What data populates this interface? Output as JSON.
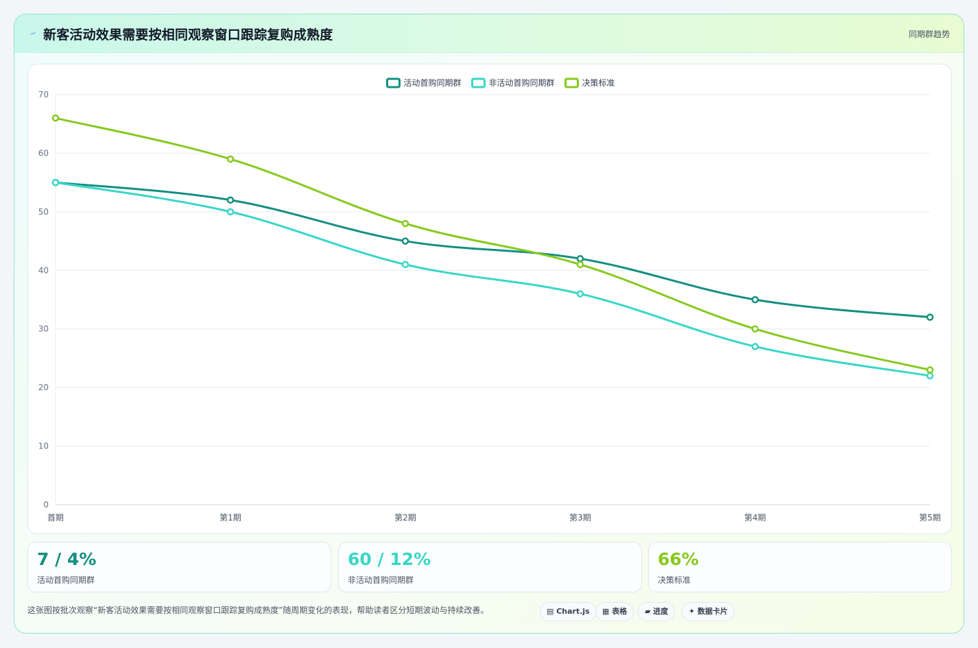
{
  "header": {
    "title": "新客活动效果需要按相同观察窗口跟踪复购成熟度",
    "tag": "同期群趋势"
  },
  "colors": {
    "series_1": "#138f80",
    "series_2": "#3ad6c6",
    "series_3": "#86c91e"
  },
  "chart_data": {
    "type": "line",
    "categories": [
      "首期",
      "第1期",
      "第2期",
      "第3期",
      "第4期",
      "第5期"
    ],
    "series": [
      {
        "name": "活动首购同期群",
        "values": [
          55,
          52,
          45,
          42,
          35,
          32
        ]
      },
      {
        "name": "非活动首购同期群",
        "values": [
          55,
          50,
          41,
          36,
          27,
          22
        ]
      },
      {
        "name": "决策标准",
        "values": [
          66,
          59,
          48,
          41,
          30,
          23
        ]
      }
    ],
    "ylim": [
      0,
      70
    ],
    "yticks": [
      0,
      10,
      20,
      30,
      40,
      50,
      60,
      70
    ],
    "grid": true,
    "legend": "top-center"
  },
  "stats": [
    {
      "value": "7 / 4%",
      "label": "活动首购同期群"
    },
    {
      "value": "60 / 12%",
      "label": "非活动首购同期群"
    },
    {
      "value": "66%",
      "label": "决策标准"
    }
  ],
  "footer": {
    "text": "这张图按批次观察“新客活动效果需要按相同观察窗口跟踪复购成熟度”随周期变化的表现，帮助读者区分短期波动与持续改善。",
    "chips": [
      {
        "icon": "chart-icon",
        "label": "▤ Chart.js"
      },
      {
        "icon": "table-icon",
        "label": "▦ 表格"
      },
      {
        "icon": "progress-icon",
        "label": "▰ 进度"
      },
      {
        "icon": "card-icon",
        "label": "✦ 数据卡片"
      }
    ]
  }
}
